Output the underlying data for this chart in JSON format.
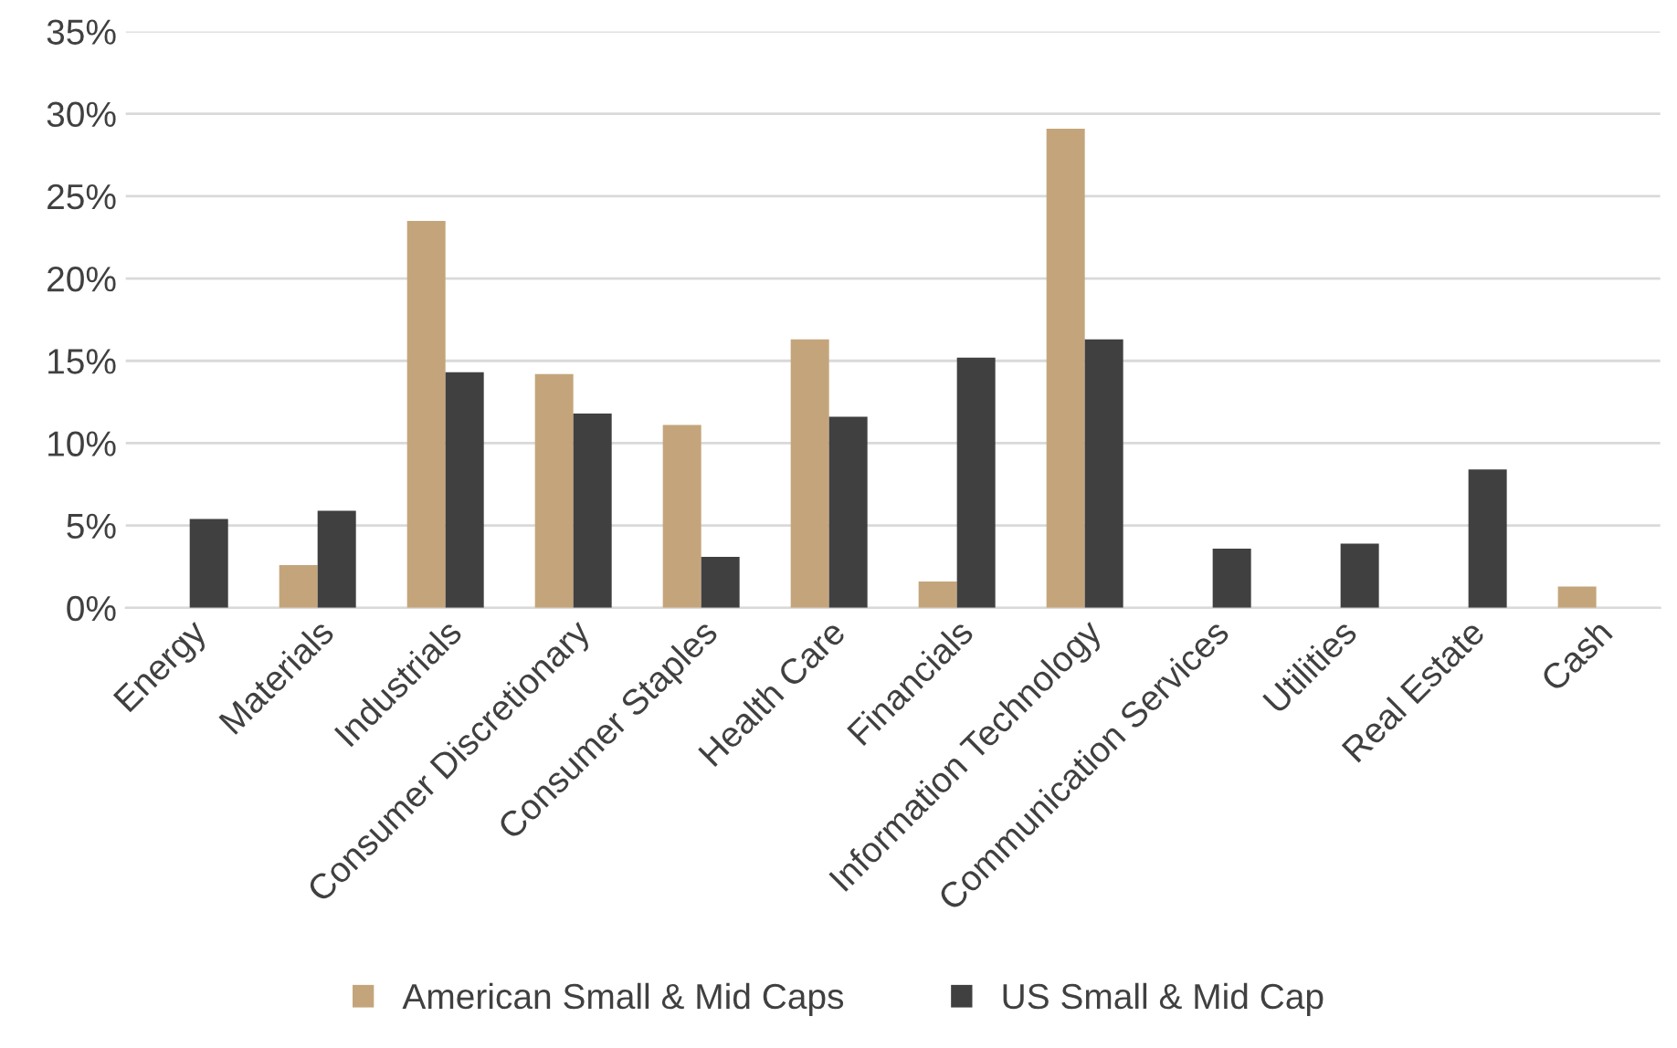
{
  "chart_data": {
    "type": "bar",
    "categories": [
      "Energy",
      "Materials",
      "Industrials",
      "Consumer Discretionary",
      "Consumer Staples",
      "Health Care",
      "Financials",
      "Information Technology",
      "Communication Services",
      "Utilities",
      "Real Estate",
      "Cash"
    ],
    "series": [
      {
        "name": "American Small & Mid Caps",
        "color": "#c4a57b",
        "values": [
          null,
          2.6,
          23.5,
          14.2,
          11.1,
          16.3,
          1.6,
          29.1,
          null,
          null,
          null,
          1.3
        ]
      },
      {
        "name": "US Small & Mid Cap",
        "color": "#404040",
        "values": [
          5.4,
          5.9,
          14.3,
          11.8,
          3.1,
          11.6,
          15.2,
          16.3,
          3.6,
          3.9,
          8.4,
          null
        ]
      }
    ],
    "ylim": [
      0,
      35
    ],
    "yticks": [
      {
        "value": 0,
        "label": "0%"
      },
      {
        "value": 5,
        "label": "5%"
      },
      {
        "value": 10,
        "label": "10%"
      },
      {
        "value": 15,
        "label": "15%"
      },
      {
        "value": 20,
        "label": "20%"
      },
      {
        "value": 25,
        "label": "25%"
      },
      {
        "value": 30,
        "label": "30%"
      },
      {
        "value": 35,
        "label": "35%"
      }
    ],
    "grid": "y",
    "legend": "bottom"
  }
}
